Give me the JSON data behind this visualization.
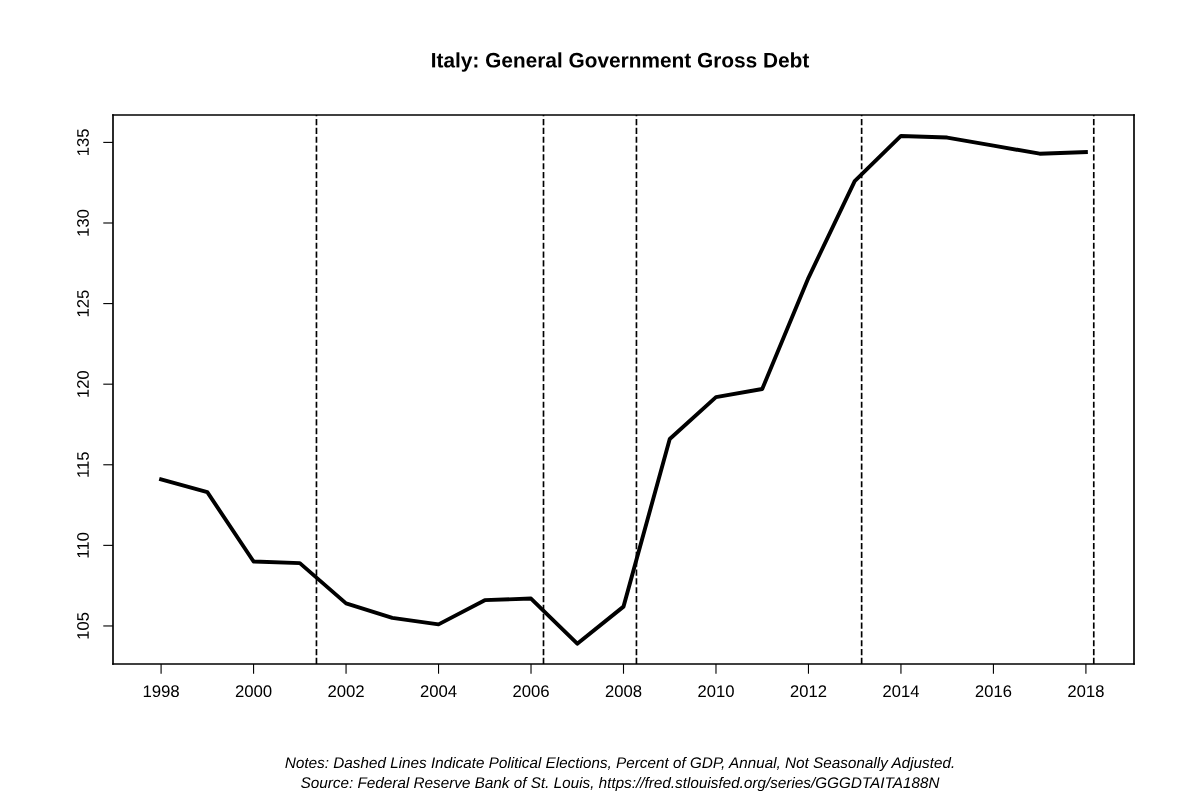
{
  "chart_data": {
    "type": "line",
    "title": "Italy: General Government Gross Debt",
    "x": [
      1998,
      1999,
      2000,
      2001,
      2002,
      2003,
      2004,
      2005,
      2006,
      2007,
      2008,
      2009,
      2010,
      2011,
      2012,
      2013,
      2014,
      2015,
      2016,
      2017,
      2018
    ],
    "series": [
      {
        "color": "#000000",
        "values": [
          114.1,
          113.3,
          109.0,
          108.9,
          106.4,
          105.5,
          105.1,
          106.6,
          106.7,
          103.9,
          106.2,
          116.6,
          119.2,
          119.7,
          126.6,
          132.6,
          135.4,
          135.3,
          134.8,
          134.3,
          134.4
        ]
      }
    ],
    "xlim": [
      1996.96,
      2019.04
    ],
    "xticks": [
      1998,
      2000,
      2002,
      2004,
      2006,
      2008,
      2010,
      2012,
      2014,
      2016,
      2018
    ],
    "ylim": [
      102.64,
      136.7
    ],
    "yticks": [
      105,
      110,
      115,
      120,
      125,
      130,
      135
    ],
    "ref_lines": [
      {
        "axis": "x",
        "value": 2001.36,
        "color": "#000000",
        "line_style": "dashed"
      },
      {
        "axis": "x",
        "value": 2006.27,
        "color": "#000000",
        "line_style": "dashed"
      },
      {
        "axis": "x",
        "value": 2008.28,
        "color": "#000000",
        "line_style": "dashed"
      },
      {
        "axis": "x",
        "value": 2013.15,
        "color": "#000000",
        "line_style": "dashed"
      },
      {
        "axis": "x",
        "value": 2018.17,
        "color": "#000000",
        "line_style": "dashed"
      }
    ],
    "annotations": [
      "Notes: Dashed Lines Indicate Political Elections, Percent of GDP, Annual, Not Seasonally Adjusted.",
      "Source: Federal Reserve Bank of St. Louis, https://fred.stlouisfed.org/series/GGGDTAITA188N"
    ],
    "grid": false,
    "legend": false,
    "marker": "none",
    "line_style": "solid"
  }
}
